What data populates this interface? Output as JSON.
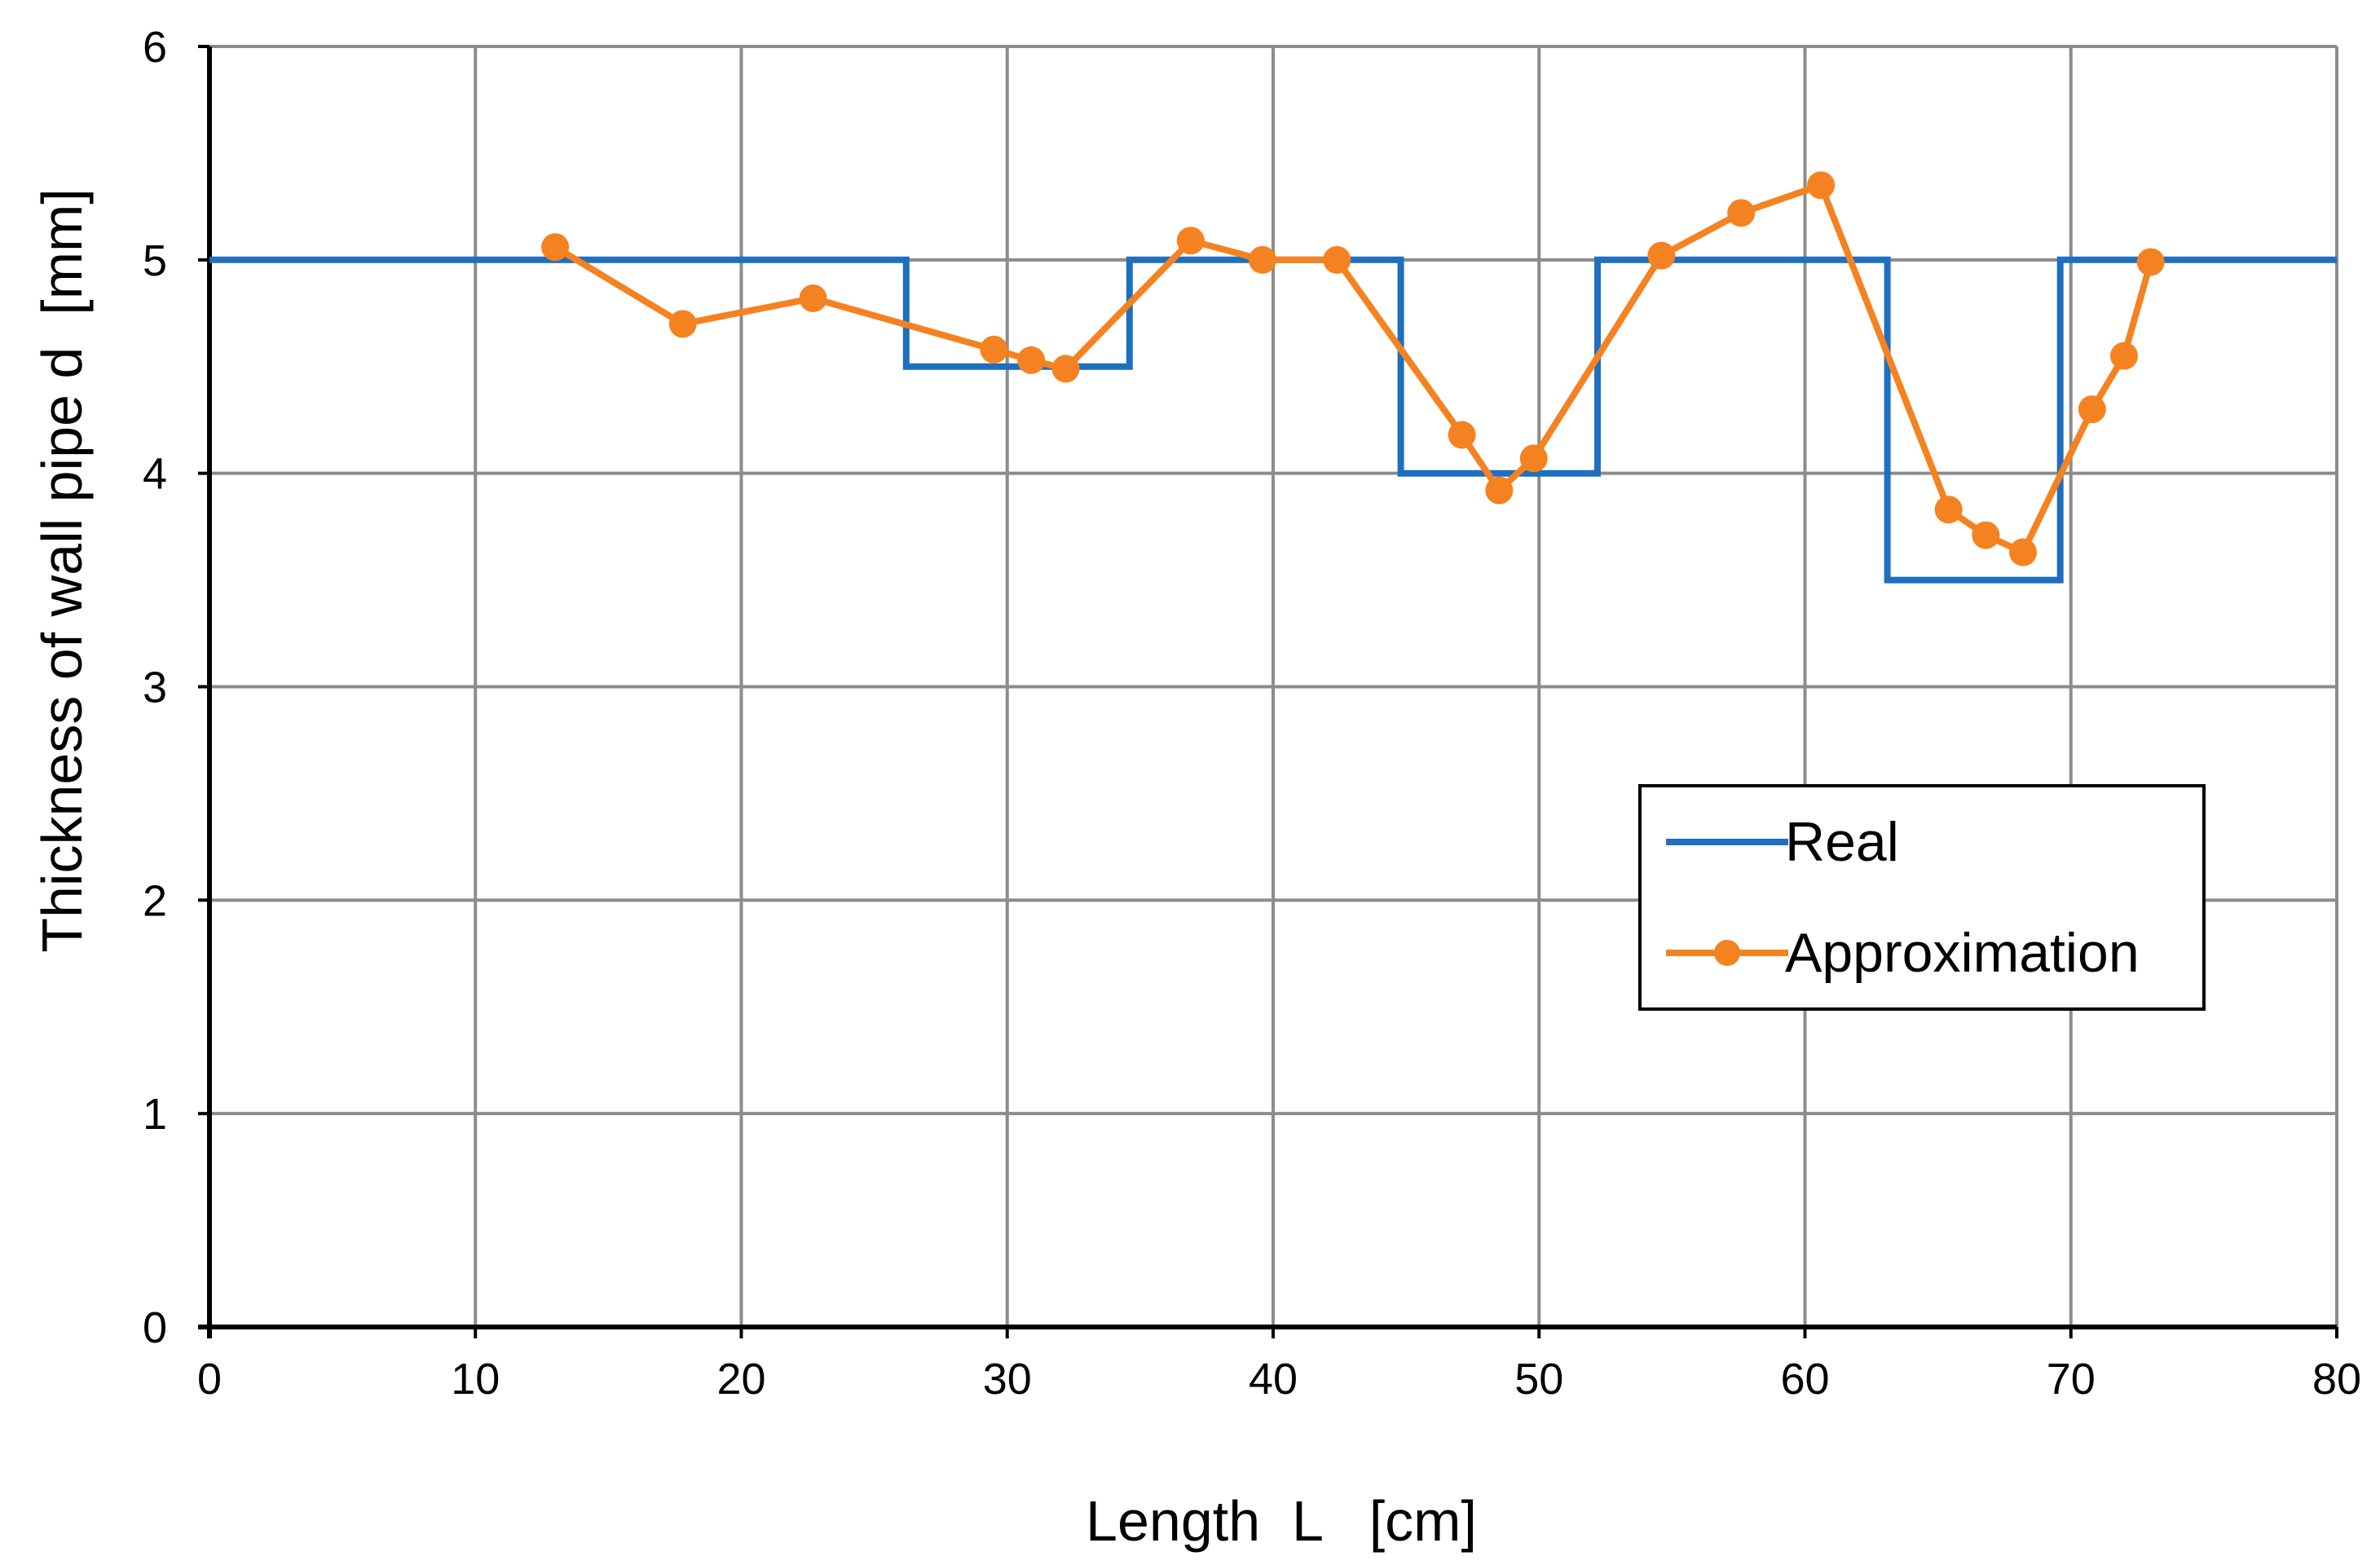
{
  "chart_data": {
    "type": "line",
    "title": "",
    "xlabel": "Length  L   [cm]",
    "ylabel": "Thickness of wall pipe d  [mm]",
    "xlim": [
      0,
      80
    ],
    "ylim": [
      0,
      6
    ],
    "xticks": [
      0,
      10,
      20,
      30,
      40,
      50,
      60,
      70,
      80
    ],
    "yticks": [
      0,
      1,
      2,
      3,
      4,
      5,
      6
    ],
    "grid": true,
    "legend_position": "right-middle",
    "series": [
      {
        "name": "Real",
        "color": "#1f6fbf",
        "markers": false,
        "x": [
          0,
          26.2,
          26.2,
          34.6,
          34.6,
          44.8,
          44.8,
          52.2,
          52.2,
          63.1,
          63.1,
          69.6,
          69.6,
          80
        ],
        "y": [
          5,
          5,
          4.5,
          4.5,
          5,
          5,
          4,
          4,
          5,
          5,
          3.5,
          3.5,
          5,
          5
        ]
      },
      {
        "name": "Approximation",
        "color": "#f58220",
        "markers": true,
        "x": [
          13.0,
          17.8,
          22.7,
          29.5,
          30.9,
          32.2,
          36.9,
          39.6,
          42.4,
          47.1,
          48.5,
          49.8,
          54.6,
          57.6,
          60.6,
          65.4,
          66.8,
          68.2,
          70.8,
          72.0,
          73.0
        ],
        "y": [
          5.06,
          4.7,
          4.82,
          4.58,
          4.53,
          4.49,
          5.09,
          5.0,
          5.0,
          4.18,
          3.92,
          4.07,
          5.02,
          5.22,
          5.35,
          3.83,
          3.71,
          3.63,
          4.3,
          4.55,
          4.99
        ]
      }
    ]
  }
}
